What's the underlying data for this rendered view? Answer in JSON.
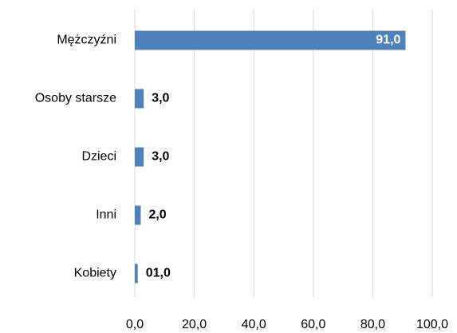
{
  "chart_data": {
    "type": "hbar",
    "categories": [
      "Mężczyźni",
      "Osoby starsze",
      "Dzieci",
      "Inni",
      "Kobiety"
    ],
    "values": [
      91,
      3,
      3,
      2,
      1
    ],
    "value_labels": [
      "91,0",
      "3,0",
      "3,0",
      "2,0",
      "01,0"
    ],
    "color": "#4f81bd",
    "xlim": [
      0,
      100
    ],
    "xticks": [
      {
        "value": 0,
        "label": "0,0"
      },
      {
        "value": 20,
        "label": "20,0"
      },
      {
        "value": 40,
        "label": "40,0"
      },
      {
        "value": 60,
        "label": "60,0"
      },
      {
        "value": 80,
        "label": "80,0"
      },
      {
        "value": 100,
        "label": "100,0"
      }
    ],
    "grid": true
  }
}
